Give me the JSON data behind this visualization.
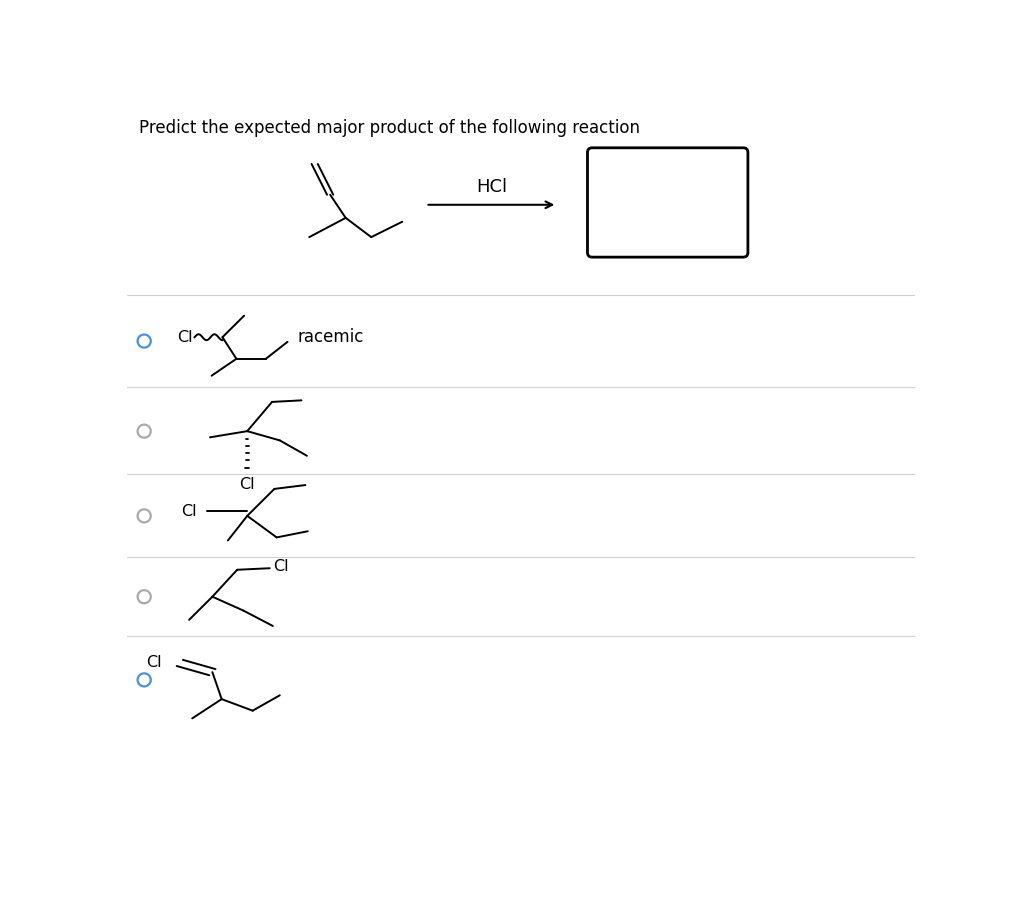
{
  "title": "Predict the expected major product of the following reaction",
  "title_fontsize": 12,
  "background_color": "#ffffff",
  "text_color": "#000000",
  "radio_color_selected": "#4a90d9",
  "radio_color_unselected": "#aaaaaa",
  "hcl_label": "HCl",
  "racemic_label": "racemic",
  "options_selected": [
    true,
    false,
    false,
    false,
    true
  ],
  "divider_color": "#d0d0d0",
  "fig_width": 10.17,
  "fig_height": 8.98,
  "dpi": 100
}
